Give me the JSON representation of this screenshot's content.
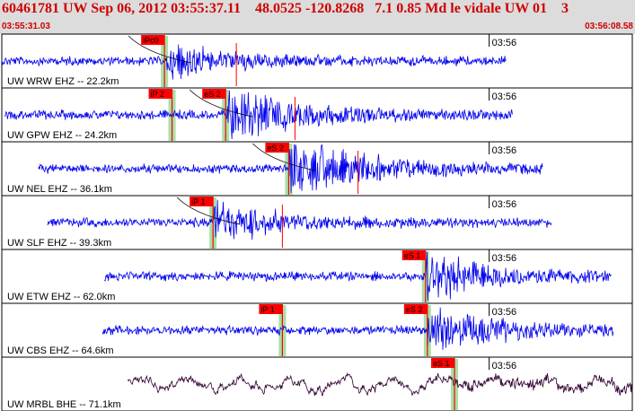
{
  "header": {
    "title": "60461781 UW Sep 06, 2012 03:55:37.11    48.0525 -120.8268   7.1 0.85 Md le vidale UW 01    3",
    "time_start": "03:55:31.03",
    "time_end": "03:56:08.58"
  },
  "colors": {
    "header_bg": "#dcdcdc",
    "header_text": "#d00000",
    "trace_blue": "#0000ee",
    "trace_dark": "#300030",
    "pick_red": "#ff0000",
    "window_green": "#a8e0a8"
  },
  "panels": [
    {
      "label": "UW WRW EHZ -- 22.2km",
      "tick": "03:56",
      "trace": "blue",
      "picks": [
        {
          "text": "iPc0",
          "pos": 0.258
        }
      ],
      "trace_start": 0.0,
      "trace_end": 0.8,
      "onset": 0.262,
      "amp": 0.3
    },
    {
      "label": "UW GPW EHZ -- 24.2km",
      "tick": "03:56",
      "trace": "blue",
      "picks": [
        {
          "text": "iP 2",
          "pos": 0.27
        },
        {
          "text": "eS 2",
          "pos": 0.355
        }
      ],
      "trace_start": 0.005,
      "trace_end": 0.81,
      "onset": 0.355,
      "amp": 0.55
    },
    {
      "label": "UW NEL EHZ -- 36.1km",
      "tick": "03:56",
      "trace": "blue",
      "picks": [
        {
          "text": "eS 2",
          "pos": 0.455
        }
      ],
      "trace_start": 0.058,
      "trace_end": 0.858,
      "onset": 0.455,
      "amp": 0.6
    },
    {
      "label": "UW SLF EHZ -- 39.3km",
      "tick": "03:56",
      "trace": "blue",
      "picks": [
        {
          "text": "iP 1",
          "pos": 0.335
        }
      ],
      "trace_start": 0.072,
      "trace_end": 0.872,
      "onset": 0.335,
      "amp": 0.35
    },
    {
      "label": "UW ETW EHZ -- 62.0km",
      "tick": "03:56",
      "trace": "blue",
      "picks": [
        {
          "text": "eS 1",
          "pos": 0.672
        }
      ],
      "trace_start": 0.163,
      "trace_end": 0.967,
      "onset": 0.672,
      "amp": 0.45
    },
    {
      "label": "UW CBS EHZ -- 64.6km",
      "tick": "03:56",
      "trace": "blue",
      "picks": [
        {
          "text": "iP 1",
          "pos": 0.445
        },
        {
          "text": "eS 2",
          "pos": 0.675
        }
      ],
      "trace_start": 0.16,
      "trace_end": 0.97,
      "onset": 0.675,
      "amp": 0.45
    },
    {
      "label": "UW MRBL BHE -- 71.1km",
      "tick": "03:56",
      "trace": "dark",
      "picks": [
        {
          "text": "eS 1",
          "pos": 0.718
        }
      ],
      "trace_start": 0.2,
      "trace_end": 1.0,
      "onset": 0.718,
      "amp": 0.35
    }
  ]
}
